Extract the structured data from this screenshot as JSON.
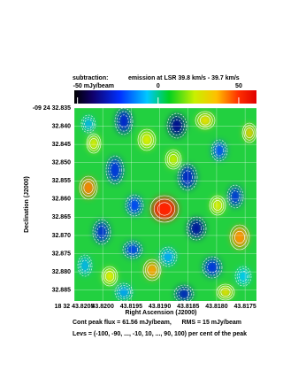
{
  "chart_data": {
    "type": "image",
    "title_left": "subtraction:",
    "title": "emission at LSR 39.8 km/s - 39.7 km/s",
    "colorbar": {
      "lim": [
        -52,
        61
      ],
      "ticks": [
        {
          "value": -50,
          "label": "-50 mJy/beam"
        },
        0,
        50
      ]
    },
    "xlabel": "Right Ascension (J2000)",
    "ylabel": "Declination (J2000)",
    "xlim": [
      43.8205,
      43.8173
    ],
    "xticks": [
      {
        "value": 43.8205,
        "label": "18 32 43.8205"
      },
      {
        "value": 43.82,
        "label": "43.8200"
      },
      {
        "value": 43.8195,
        "label": "43.8195"
      },
      {
        "value": 43.819,
        "label": "43.8190"
      },
      {
        "value": 43.8185,
        "label": "43.8185"
      },
      {
        "value": 43.818,
        "label": "43.8180"
      },
      {
        "value": 43.8175,
        "label": "43.8175"
      }
    ],
    "ylim": [
      32.888,
      32.835
    ],
    "yticks": [
      {
        "value": 32.835,
        "label": "-09 24 32.835"
      },
      {
        "value": 32.84,
        "label": "32.840"
      },
      {
        "value": 32.845,
        "label": "32.845"
      },
      {
        "value": 32.85,
        "label": "32.850"
      },
      {
        "value": 32.855,
        "label": "32.855"
      },
      {
        "value": 32.86,
        "label": "32.860"
      },
      {
        "value": 32.865,
        "label": "32.865"
      },
      {
        "value": 32.87,
        "label": "32.870"
      },
      {
        "value": 32.875,
        "label": "32.875"
      },
      {
        "value": 32.88,
        "label": "32.880"
      },
      {
        "value": 32.885,
        "label": "32.885"
      }
    ],
    "grid": true,
    "annotations": [
      "Cont peak flux = 61.56 mJy/beam,      RMS = 15 mJy/beam",
      "Levs = (-100, -90, ..., -10, 10, ..., 90, 100) per cent of the peak"
    ]
  }
}
